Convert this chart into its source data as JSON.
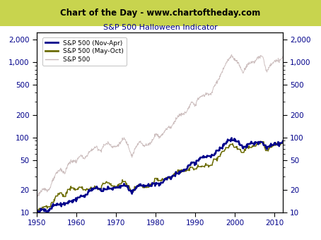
{
  "title_banner": "Chart of the Day - www.chartoftheday.com",
  "title_banner_bg": "#c8d44e",
  "subtitle": "S&P 500 Halloween Indicator",
  "xmin": 1950,
  "xmax": 2012,
  "ymin": 10,
  "ymax": 2500,
  "yticks": [
    10,
    20,
    50,
    100,
    200,
    500,
    1000,
    2000
  ],
  "xticks": [
    1950,
    1960,
    1970,
    1980,
    1990,
    2000,
    2010
  ],
  "color_nov_apr": "#00008B",
  "color_may_oct": "#6b6b00",
  "color_sp500": "#c8b8b8",
  "legend_labels": [
    "S&P 500 (Nov-Apr)",
    "S&P 500 (May-Oct)",
    "S&P 500"
  ],
  "banner_text_color": "#000000",
  "subtitle_text_color": "#00008B",
  "axis_label_color": "#00008B",
  "axis_tick_color": "#00008B"
}
